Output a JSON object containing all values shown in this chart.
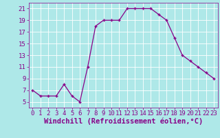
{
  "x": [
    0,
    1,
    2,
    3,
    4,
    5,
    6,
    7,
    8,
    9,
    10,
    11,
    12,
    13,
    14,
    15,
    16,
    17,
    18,
    19,
    20,
    21,
    22,
    23
  ],
  "y": [
    7,
    6,
    6,
    6,
    8,
    6,
    5,
    11,
    18,
    19,
    19,
    19,
    21,
    21,
    21,
    21,
    20,
    19,
    16,
    13,
    12,
    11,
    10,
    9
  ],
  "line_color": "#880088",
  "marker": "+",
  "marker_color": "#880088",
  "bg_color": "#aee8e8",
  "grid_color": "#ffffff",
  "xlabel": "Windchill (Refroidissement éolien,°C)",
  "xlabel_color": "#880088",
  "xlabel_fontsize": 7.5,
  "tick_color": "#880088",
  "tick_fontsize": 6.5,
  "ylim": [
    4.0,
    22.0
  ],
  "yticks": [
    5,
    7,
    9,
    11,
    13,
    15,
    17,
    19,
    21
  ],
  "xlim": [
    -0.5,
    23.5
  ],
  "xticks": [
    0,
    1,
    2,
    3,
    4,
    5,
    6,
    7,
    8,
    9,
    10,
    11,
    12,
    13,
    14,
    15,
    16,
    17,
    18,
    19,
    20,
    21,
    22,
    23
  ]
}
